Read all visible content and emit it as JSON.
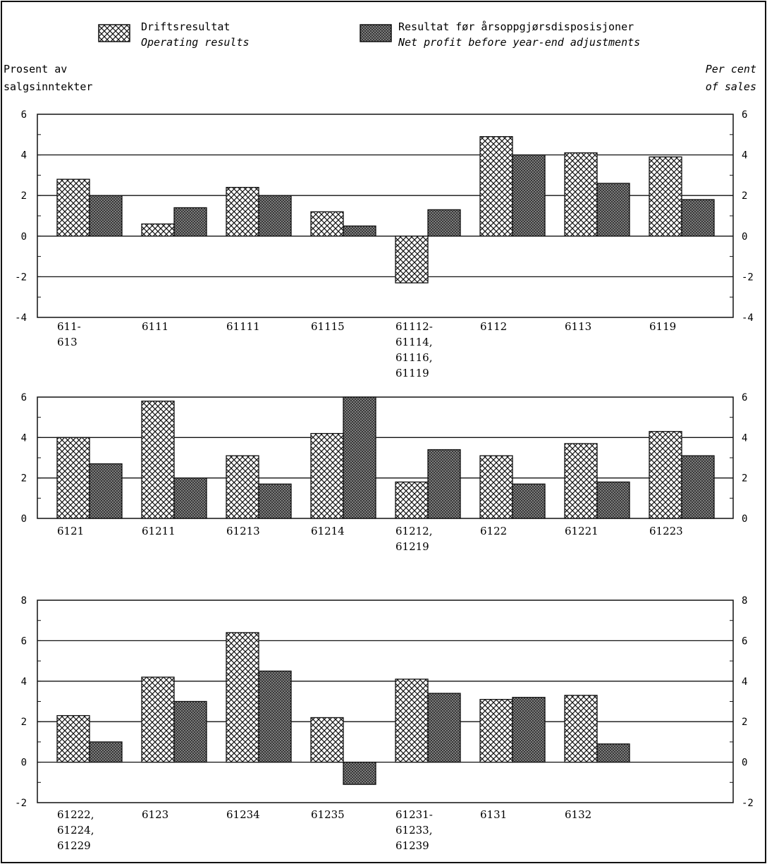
{
  "legend": [
    {
      "name": "Driftsresultat",
      "subtitle": "Operating results",
      "pattern": "crosshatch-light"
    },
    {
      "name": "Resultat før årsoppgjørsdisposisjoner",
      "subtitle": "Net profit before year-end adjustments",
      "pattern": "crosshatch-dark"
    }
  ],
  "ylabel_left": [
    "Prosent av",
    "salgsinntekter"
  ],
  "ylabel_right": [
    "Per cent",
    "of sales"
  ],
  "colors": {
    "ink": "#111111",
    "background": "#ffffff"
  },
  "chart_data": [
    {
      "type": "bar",
      "ylim": [
        -4,
        6
      ],
      "yticks": [
        -4,
        -2,
        0,
        2,
        4,
        6
      ],
      "gridlines": [
        -2,
        0,
        2,
        4
      ],
      "categories": [
        [
          "611-",
          "613"
        ],
        [
          "6111"
        ],
        [
          "61111"
        ],
        [
          "61115"
        ],
        [
          "61112-",
          "61114,",
          "61116,",
          "61119"
        ],
        [
          "6112"
        ],
        [
          "6113"
        ],
        [
          "6119"
        ]
      ],
      "series": [
        {
          "name": "Driftsresultat",
          "values": [
            2.8,
            0.6,
            2.4,
            1.2,
            -2.3,
            4.9,
            4.1,
            3.9
          ]
        },
        {
          "name": "Resultat før årsoppgjørsdisposisjoner",
          "values": [
            2.0,
            1.4,
            2.0,
            0.5,
            1.3,
            4.0,
            2.6,
            1.8
          ]
        }
      ]
    },
    {
      "type": "bar",
      "ylim": [
        0,
        6
      ],
      "yticks": [
        0,
        2,
        4,
        6
      ],
      "gridlines": [
        2,
        4
      ],
      "categories": [
        [
          "6121"
        ],
        [
          "61211"
        ],
        [
          "61213"
        ],
        [
          "61214"
        ],
        [
          "61212,",
          "61219"
        ],
        [
          "6122"
        ],
        [
          "61221"
        ],
        [
          "61223"
        ]
      ],
      "series": [
        {
          "name": "Driftsresultat",
          "values": [
            4.0,
            5.8,
            3.1,
            4.2,
            1.8,
            3.1,
            3.7,
            4.3
          ]
        },
        {
          "name": "Resultat før årsoppgjørsdisposisjoner",
          "values": [
            2.7,
            2.0,
            1.7,
            6.0,
            3.4,
            1.7,
            1.8,
            3.1
          ]
        }
      ]
    },
    {
      "type": "bar",
      "ylim": [
        -2,
        8
      ],
      "yticks": [
        -2,
        0,
        2,
        4,
        6,
        8
      ],
      "gridlines": [
        0,
        2,
        4,
        6
      ],
      "categories": [
        [
          "61222,",
          "61224,",
          "61229"
        ],
        [
          "6123"
        ],
        [
          "61234"
        ],
        [
          "61235"
        ],
        [
          "61231-",
          "61233,",
          "61239"
        ],
        [
          "6131"
        ],
        [
          "6132"
        ]
      ],
      "series": [
        {
          "name": "Driftsresultat",
          "values": [
            2.3,
            4.2,
            6.4,
            2.2,
            4.1,
            3.1,
            3.3
          ]
        },
        {
          "name": "Resultat før årsoppgjørsdisposisjoner",
          "values": [
            1.0,
            3.0,
            4.5,
            -1.1,
            3.4,
            3.2,
            0.9
          ]
        }
      ]
    }
  ]
}
